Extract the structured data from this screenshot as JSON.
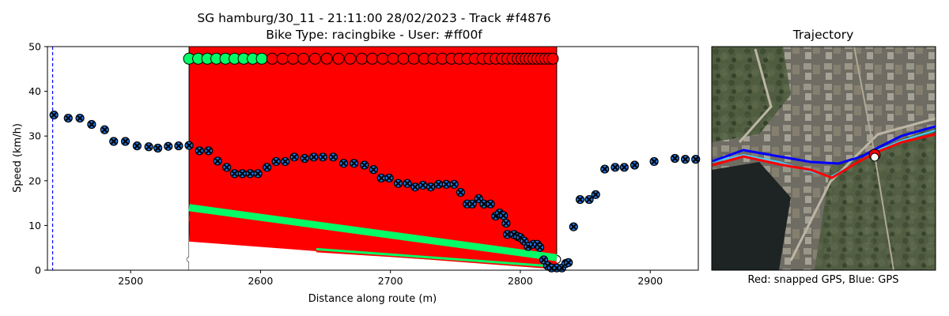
{
  "chart_data": {
    "type": "scatter",
    "title_line1": "SG hamburg/30_11 - 21:11:00 28/02/2023 - Track #f4876",
    "title_line2": "Bike Type: racingbike - User: #ff00f",
    "xlabel": "Distance along route (m)",
    "ylabel": "Speed (km/h)",
    "xlim": [
      2436,
      2937
    ],
    "ylim": [
      0,
      50
    ],
    "xticks": [
      2500,
      2600,
      2700,
      2800,
      2900
    ],
    "yticks": [
      0,
      10,
      20,
      30,
      40,
      50
    ],
    "grid": false,
    "vline_dashed_x": 2440,
    "highlight_region": {
      "x_start": 2545,
      "x_end": 2828,
      "color": "#ff0000"
    },
    "top_markers": {
      "y": 47.3,
      "green": [
        2545,
        2552,
        2559,
        2566,
        2573,
        2580,
        2587,
        2594,
        2601
      ],
      "red": [
        2609,
        2617,
        2625,
        2633,
        2642,
        2651,
        2660,
        2669,
        2678,
        2686,
        2694,
        2702,
        2710,
        2718,
        2726,
        2733,
        2740,
        2747,
        2753,
        2759,
        2765,
        2771,
        2776,
        2781,
        2786,
        2790,
        2794,
        2798,
        2801,
        2804,
        2807,
        2810,
        2813,
        2816,
        2819,
        2822,
        2825
      ]
    },
    "speed_points": [
      [
        2441,
        34.7
      ],
      [
        2452,
        34.0
      ],
      [
        2461,
        34.0
      ],
      [
        2470,
        32.6
      ],
      [
        2480,
        31.4
      ],
      [
        2487,
        28.8
      ],
      [
        2496,
        28.8
      ],
      [
        2505,
        27.8
      ],
      [
        2514,
        27.6
      ],
      [
        2521,
        27.3
      ],
      [
        2529,
        27.7
      ],
      [
        2537,
        27.8
      ],
      [
        2545,
        27.9
      ],
      [
        2553,
        26.7
      ],
      [
        2560,
        26.7
      ],
      [
        2567,
        24.4
      ],
      [
        2574,
        23.0
      ],
      [
        2580,
        21.6
      ],
      [
        2586,
        21.6
      ],
      [
        2592,
        21.6
      ],
      [
        2598,
        21.6
      ],
      [
        2605,
        23.0
      ],
      [
        2612,
        24.3
      ],
      [
        2619,
        24.3
      ],
      [
        2626,
        25.3
      ],
      [
        2634,
        25.0
      ],
      [
        2641,
        25.3
      ],
      [
        2648,
        25.3
      ],
      [
        2656,
        25.3
      ],
      [
        2664,
        23.9
      ],
      [
        2672,
        23.9
      ],
      [
        2680,
        23.5
      ],
      [
        2687,
        22.5
      ],
      [
        2693,
        20.6
      ],
      [
        2699,
        20.6
      ],
      [
        2706,
        19.4
      ],
      [
        2713,
        19.4
      ],
      [
        2719,
        18.6
      ],
      [
        2725,
        19.0
      ],
      [
        2731,
        18.6
      ],
      [
        2737,
        19.2
      ],
      [
        2743,
        19.2
      ],
      [
        2749,
        19.2
      ],
      [
        2754,
        17.4
      ],
      [
        2759,
        14.8
      ],
      [
        2763,
        14.8
      ],
      [
        2768,
        16.0
      ],
      [
        2772,
        14.8
      ],
      [
        2777,
        14.8
      ],
      [
        2781,
        12.1
      ],
      [
        2784,
        12.8
      ],
      [
        2787,
        12.2
      ],
      [
        2789,
        10.5
      ],
      [
        2790,
        8.0
      ],
      [
        2795,
        8.0
      ],
      [
        2798,
        7.5
      ],
      [
        2800,
        7.3
      ],
      [
        2803,
        6.5
      ],
      [
        2806,
        5.3
      ],
      [
        2810,
        5.8
      ],
      [
        2813,
        5.8
      ],
      [
        2815,
        5.1
      ],
      [
        2818,
        2.3
      ],
      [
        2821,
        1.0
      ],
      [
        2824,
        0.5
      ],
      [
        2828,
        0.5
      ],
      [
        2832,
        0.5
      ],
      [
        2835,
        1.5
      ],
      [
        2837,
        1.7
      ],
      [
        2841,
        9.7
      ],
      [
        2846,
        15.8
      ],
      [
        2853,
        15.8
      ],
      [
        2858,
        16.9
      ],
      [
        2865,
        22.6
      ],
      [
        2873,
        23.0
      ],
      [
        2880,
        23.0
      ],
      [
        2888,
        23.5
      ],
      [
        2903,
        24.3
      ],
      [
        2919,
        25.0
      ],
      [
        2927,
        24.8
      ],
      [
        2935,
        24.8
      ]
    ],
    "band_lines": [
      {
        "color": "#ff0000",
        "x_start": 2545,
        "x_end": 2828,
        "y_start": 11.8,
        "y_end": 2.5
      },
      {
        "color": "#00ff66",
        "x_start": 2545,
        "x_end": 2828,
        "y_start": 14.0,
        "y_end": 2.8
      },
      {
        "color": "#ff0000",
        "x_start": 2545,
        "x_end": 2828,
        "y_start": 7.2,
        "y_end": 1.0
      },
      {
        "color": "#00ff66",
        "x_start": 2643,
        "x_end": 2828,
        "y_start": 4.7,
        "y_end": 0.8
      }
    ],
    "colors": {
      "region": "#ff0000",
      "green_marker": "#00ff66",
      "red_marker": "#ff0000",
      "point_fill": "#1e74e0",
      "point_cross": "#000000",
      "vline": "#0000ff"
    }
  },
  "map": {
    "title": "Trajectory",
    "caption": "Red: snapped GPS, Blue: GPS",
    "colors": {
      "snapped": "#ff0000",
      "gps": "#0000ff"
    }
  }
}
